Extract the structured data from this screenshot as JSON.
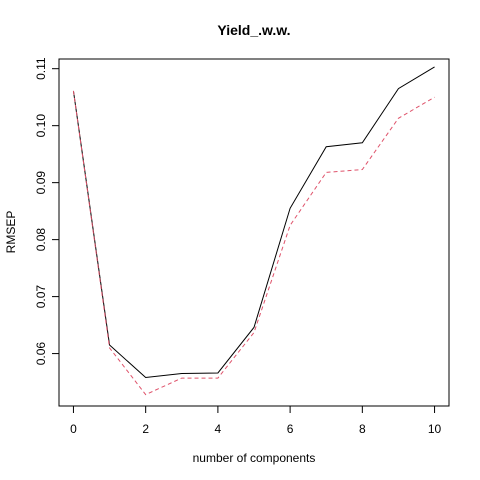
{
  "chart_data": {
    "type": "line",
    "title": "Yield_.w.w.",
    "xlabel": "number of components",
    "ylabel": "RMSEP",
    "xlim": [
      -0.4,
      10.4
    ],
    "ylim": [
      0.0508,
      0.1117
    ],
    "x_ticks": [
      0,
      2,
      4,
      6,
      8,
      10
    ],
    "x_tick_labels": [
      "0",
      "2",
      "4",
      "6",
      "8",
      "10"
    ],
    "y_ticks": [
      0.06,
      0.07,
      0.08,
      0.09,
      0.1,
      0.11
    ],
    "y_tick_labels": [
      "0.06",
      "0.07",
      "0.08",
      "0.09",
      "0.10",
      "0.11"
    ],
    "grid": false,
    "legend": "none",
    "x": [
      0,
      1,
      2,
      3,
      4,
      5,
      6,
      7,
      8,
      9,
      10
    ],
    "series": [
      {
        "values": [
          0.1061,
          0.0615,
          0.0558,
          0.0565,
          0.0566,
          0.0646,
          0.0855,
          0.0963,
          0.097,
          0.1065,
          0.1103
        ],
        "color": "#000000",
        "dash": "solid"
      },
      {
        "values": [
          0.1061,
          0.061,
          0.0528,
          0.0557,
          0.0557,
          0.0637,
          0.0825,
          0.0918,
          0.0923,
          0.1013,
          0.105
        ],
        "color": "#DF536B",
        "dash": "dashed"
      }
    ]
  }
}
